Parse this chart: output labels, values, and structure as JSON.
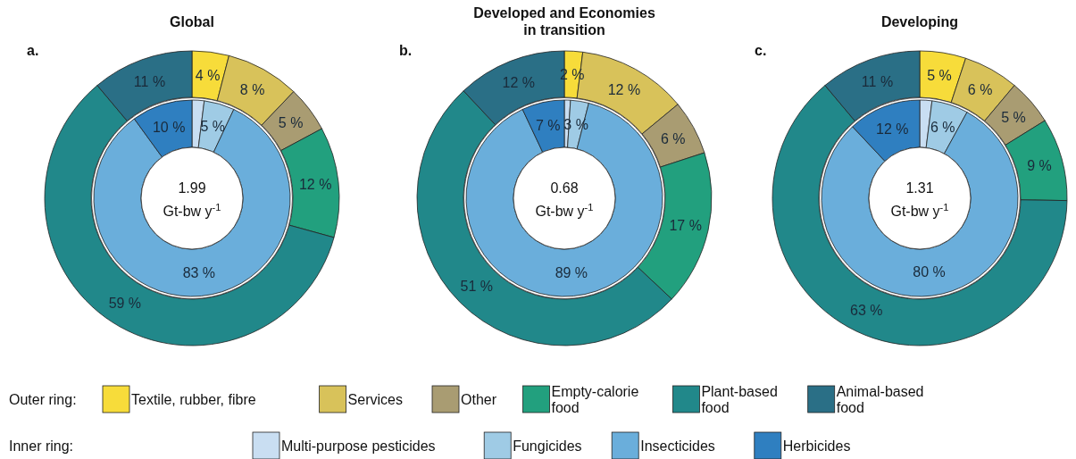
{
  "chart_data": [
    {
      "type": "donut",
      "title": "Global",
      "annotations": [
        "a."
      ],
      "legend": "bottom",
      "legend_title": "Outer ring:",
      "categories": [
        "Textile, rubber, fibre",
        "Services",
        "Other",
        "Empty-calorie food",
        "Plant-based food",
        "Animal-based food"
      ],
      "values": [
        4,
        8,
        5,
        12,
        59,
        11
      ],
      "colors": [
        "#f7dc3a",
        "#d8c25a",
        "#a99c72",
        "#22a07e",
        "#21888a",
        "#2a6f86"
      ],
      "value_labels": [
        "4 %",
        "8 %",
        "5 %",
        "12 %",
        "59 %",
        "11 %"
      ]
    },
    {
      "type": "donut",
      "annotations": [
        "1.99",
        "Gt-bw y$^{-1}$"
      ],
      "legend": "bottom",
      "legend_title": "Inner ring:",
      "categories": [
        "Multi-purpose pesticides",
        "Fungicides",
        "Insecticides",
        "Herbicides"
      ],
      "values": [
        2,
        5,
        83,
        10
      ],
      "colors": [
        "#c9def2",
        "#9fcbe5",
        "#6aaedb",
        "#2f7fc0"
      ],
      "value_labels": [
        null,
        "5 %",
        "83 %",
        "10 %"
      ]
    },
    {
      "type": "donut",
      "title": "Developed and Economies in transition",
      "annotations": [
        "b."
      ],
      "categories": [
        null,
        null,
        null,
        null,
        null,
        null
      ],
      "values": [
        2,
        12,
        6,
        17,
        51,
        12
      ],
      "colors": [
        "#f7dc3a",
        "#d8c25a",
        "#a99c72",
        "#22a07e",
        "#21888a",
        "#2a6f86"
      ],
      "value_labels": [
        "2 %",
        "12 %",
        "6 %",
        "17 %",
        "51 %",
        "12 %"
      ]
    },
    {
      "type": "donut",
      "annotations": [
        "0.68",
        "Gt-bw y$^{-1}$"
      ],
      "categories": [
        null,
        null,
        null,
        null
      ],
      "values": [
        1,
        3,
        89,
        7
      ],
      "colors": [
        "#c9def2",
        "#9fcbe5",
        "#6aaedb",
        "#2f7fc0"
      ],
      "value_labels": [
        null,
        "3 %",
        "89 %",
        "7 %"
      ]
    },
    {
      "type": "donut",
      "title": "Developing",
      "annotations": [
        "c."
      ],
      "categories": [
        null,
        null,
        null,
        null,
        null,
        null
      ],
      "values": [
        5,
        6,
        5,
        9,
        63,
        11
      ],
      "colors": [
        "#f7dc3a",
        "#d8c25a",
        "#a99c72",
        "#22a07e",
        "#21888a",
        "#2a6f86"
      ],
      "value_labels": [
        "5 %",
        "6 %",
        "5 %",
        "9 %",
        "63 %",
        "11 %"
      ]
    },
    {
      "type": "donut",
      "annotations": [
        "1.31",
        "Gt-bw y$^{-1}$"
      ],
      "categories": [
        null,
        null,
        null,
        null
      ],
      "values": [
        2,
        6,
        80,
        12
      ],
      "colors": [
        "#c9def2",
        "#9fcbe5",
        "#6aaedb",
        "#2f7fc0"
      ],
      "value_labels": [
        null,
        "6 %",
        "80 %",
        "12 %"
      ]
    }
  ]
}
